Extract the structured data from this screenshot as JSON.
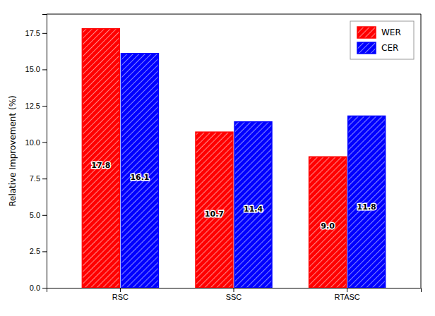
{
  "chart_data": {
    "type": "bar",
    "categories": [
      "RSC",
      "SSC",
      "RTASC"
    ],
    "series": [
      {
        "name": "WER",
        "color": "#FF0000",
        "values": [
          17.8,
          10.7,
          9.0
        ],
        "value_labels": [
          "17.8",
          "10.7",
          "9.0"
        ]
      },
      {
        "name": "CER",
        "color": "#0000FF",
        "values": [
          16.1,
          11.4,
          11.8
        ],
        "value_labels": [
          "16.1",
          "11.4",
          "11.8"
        ]
      }
    ],
    "ylabel": "Relative Improvement (%)",
    "ylim": [
      0,
      18.8
    ],
    "yticks": [
      {
        "value": 0,
        "label": "0.0"
      },
      2.5,
      {
        "value": 5,
        "label": "5.0"
      },
      7.5,
      {
        "value": 10,
        "label": "10.0"
      },
      12.5,
      {
        "value": 15,
        "label": "15.0"
      },
      17.5
    ],
    "data_labels": true,
    "legend": "top-right",
    "grid": false
  }
}
